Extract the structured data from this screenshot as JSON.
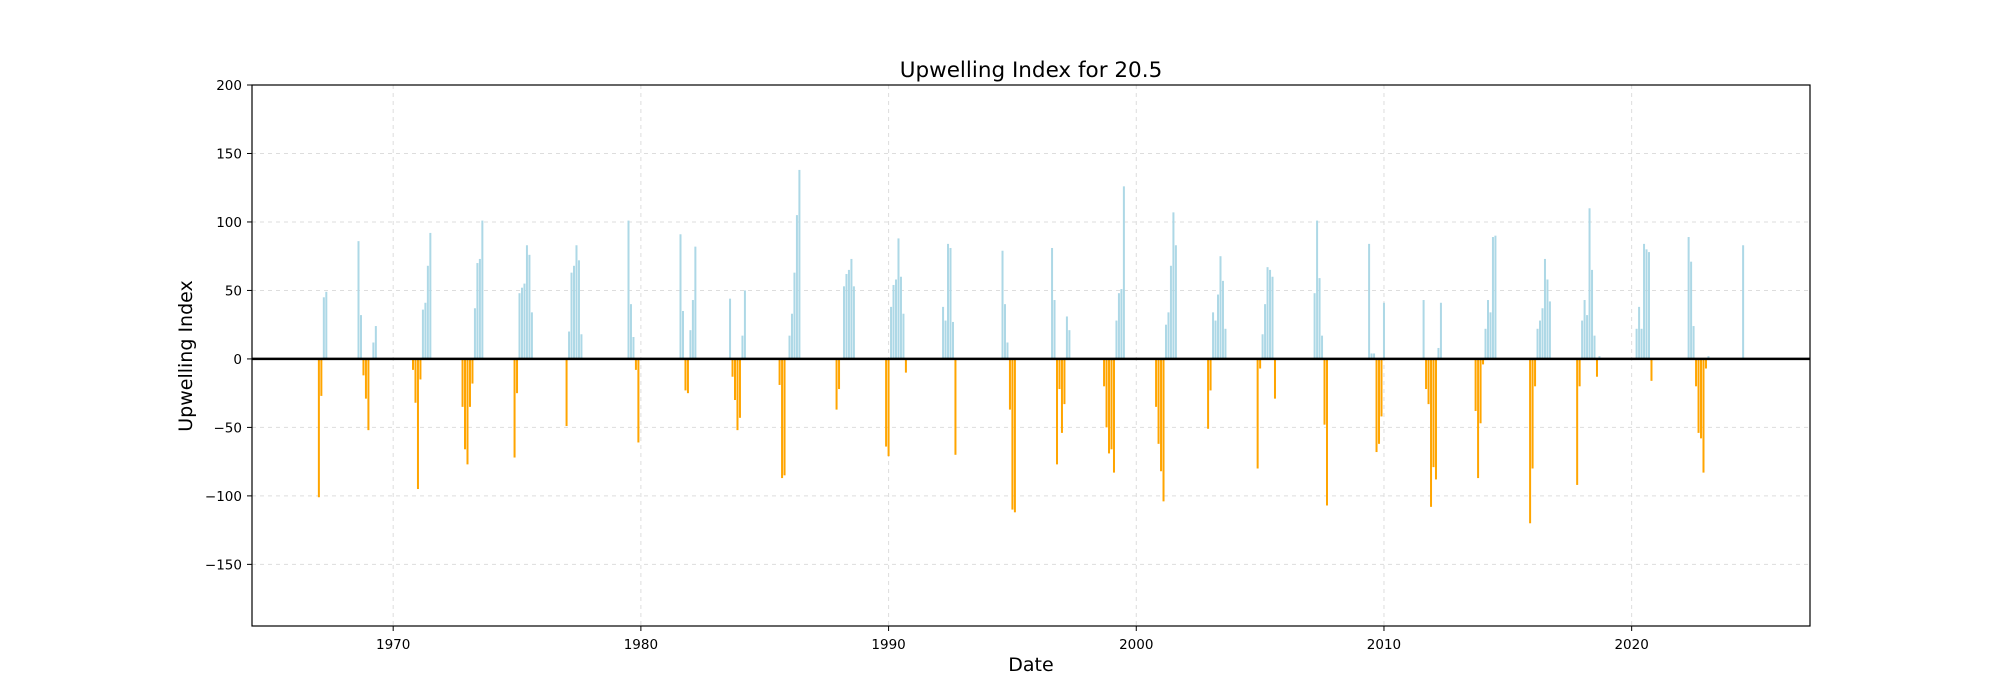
{
  "chart_data": {
    "type": "bar",
    "title": "Upwelling Index for 20.5",
    "xlabel": "Date",
    "ylabel": "Upwelling Index",
    "xlim": [
      1964.3,
      2027.2
    ],
    "ylim": [
      -195,
      200
    ],
    "yticks": [
      -150,
      -100,
      -50,
      0,
      50,
      100,
      150,
      200
    ],
    "xticks": [
      1970,
      1980,
      1990,
      2000,
      2010,
      2020
    ],
    "grid": true,
    "zero_line": true,
    "colors": {
      "positive": "#add8e6",
      "negative": "#ffa500",
      "zero_line": "#000000",
      "grid": "#dddddd"
    },
    "x": [
      1967.0,
      1967.1,
      1967.2,
      1967.3,
      1968.6,
      1968.7,
      1968.8,
      1968.9,
      1969.0,
      1969.2,
      1969.3,
      1970.8,
      1970.9,
      1971.0,
      1971.1,
      1971.2,
      1971.3,
      1971.4,
      1971.5,
      1972.8,
      1972.9,
      1973.0,
      1973.1,
      1973.2,
      1973.3,
      1973.4,
      1973.5,
      1973.6,
      1974.9,
      1975.0,
      1975.1,
      1975.2,
      1975.3,
      1975.4,
      1975.5,
      1975.6,
      1977.0,
      1977.1,
      1977.2,
      1977.3,
      1977.4,
      1977.5,
      1977.6,
      1979.5,
      1979.6,
      1979.7,
      1979.8,
      1979.9,
      1981.6,
      1981.7,
      1981.8,
      1981.9,
      1982.0,
      1982.1,
      1982.2,
      1983.6,
      1983.7,
      1983.8,
      1983.9,
      1984.0,
      1984.1,
      1984.2,
      1985.6,
      1985.7,
      1985.8,
      1986.0,
      1986.1,
      1986.2,
      1986.3,
      1986.4,
      1987.9,
      1988.0,
      1988.2,
      1988.3,
      1988.4,
      1988.5,
      1988.6,
      1989.9,
      1990.0,
      1990.1,
      1990.2,
      1990.3,
      1990.4,
      1990.5,
      1990.6,
      1990.7,
      1992.2,
      1992.3,
      1992.4,
      1992.5,
      1992.6,
      1992.7,
      1994.6,
      1994.7,
      1994.8,
      1994.9,
      1995.0,
      1995.1,
      1996.6,
      1996.7,
      1996.8,
      1996.9,
      1997.0,
      1997.1,
      1997.2,
      1997.3,
      1998.7,
      1998.8,
      1998.9,
      1999.0,
      1999.1,
      1999.2,
      1999.3,
      1999.4,
      1999.5,
      2000.8,
      2000.9,
      2001.0,
      2001.1,
      2001.2,
      2001.3,
      2001.4,
      2001.5,
      2001.6,
      2002.9,
      2003.0,
      2003.1,
      2003.2,
      2003.3,
      2003.4,
      2003.5,
      2003.6,
      2004.9,
      2005.0,
      2005.1,
      2005.2,
      2005.3,
      2005.4,
      2005.5,
      2005.6,
      2007.2,
      2007.3,
      2007.4,
      2007.5,
      2007.6,
      2007.7,
      2009.4,
      2009.5,
      2009.6,
      2009.7,
      2009.8,
      2009.9,
      2010.0,
      2011.6,
      2011.7,
      2011.8,
      2011.9,
      2012.0,
      2012.1,
      2012.2,
      2012.3,
      2013.7,
      2013.8,
      2013.9,
      2014.0,
      2014.1,
      2014.2,
      2014.3,
      2014.4,
      2014.5,
      2015.9,
      2016.0,
      2016.1,
      2016.2,
      2016.3,
      2016.4,
      2016.5,
      2016.6,
      2016.7,
      2017.8,
      2017.9,
      2018.0,
      2018.1,
      2018.2,
      2018.3,
      2018.4,
      2018.5,
      2018.6,
      2018.7,
      2020.2,
      2020.3,
      2020.4,
      2020.5,
      2020.6,
      2020.7,
      2020.8,
      2022.3,
      2022.4,
      2022.5,
      2022.6,
      2022.7,
      2022.8,
      2022.9,
      2023.0,
      2023.1,
      2024.5
    ],
    "values": [
      -101,
      -27,
      45,
      49,
      86,
      32,
      -12,
      -29,
      -52,
      12,
      24,
      -8,
      -32,
      -95,
      -15,
      36,
      41,
      68,
      92,
      -35,
      -66,
      -77,
      -35,
      -18,
      37,
      70,
      73,
      101,
      -72,
      -25,
      48,
      52,
      55,
      83,
      76,
      34,
      -49,
      20,
      63,
      68,
      83,
      72,
      18,
      101,
      40,
      16,
      -8,
      -61,
      91,
      35,
      -23,
      -25,
      21,
      43,
      82,
      44,
      -13,
      -30,
      -52,
      -43,
      17,
      50,
      -19,
      -87,
      -85,
      17,
      33,
      63,
      105,
      138,
      -37,
      -22,
      53,
      62,
      65,
      73,
      53,
      -64,
      -71,
      38,
      54,
      58,
      88,
      60,
      33,
      -10,
      38,
      28,
      84,
      81,
      27,
      -70,
      79,
      40,
      12,
      -37,
      -110,
      -112,
      81,
      43,
      -77,
      -22,
      -54,
      -33,
      31,
      21,
      -20,
      -50,
      -69,
      -66,
      -83,
      28,
      48,
      51,
      126,
      -35,
      -62,
      -82,
      -104,
      25,
      34,
      68,
      107,
      83,
      -51,
      -23,
      34,
      28,
      47,
      75,
      57,
      22,
      -80,
      -7,
      18,
      40,
      67,
      65,
      60,
      -29,
      48,
      101,
      59,
      17,
      -48,
      -107,
      84,
      4,
      4,
      -68,
      -62,
      -42,
      41,
      43,
      -22,
      -33,
      -108,
      -79,
      -88,
      8,
      41,
      -38,
      -87,
      -47,
      -4,
      22,
      43,
      34,
      89,
      90,
      -120,
      -80,
      -20,
      22,
      28,
      37,
      73,
      58,
      42,
      -92,
      -20,
      28,
      43,
      32,
      110,
      65,
      17,
      -13,
      2,
      22,
      38,
      22,
      84,
      80,
      78,
      -16,
      89,
      71,
      24,
      -20,
      -54,
      -58,
      -83,
      -7,
      2,
      83
    ]
  }
}
